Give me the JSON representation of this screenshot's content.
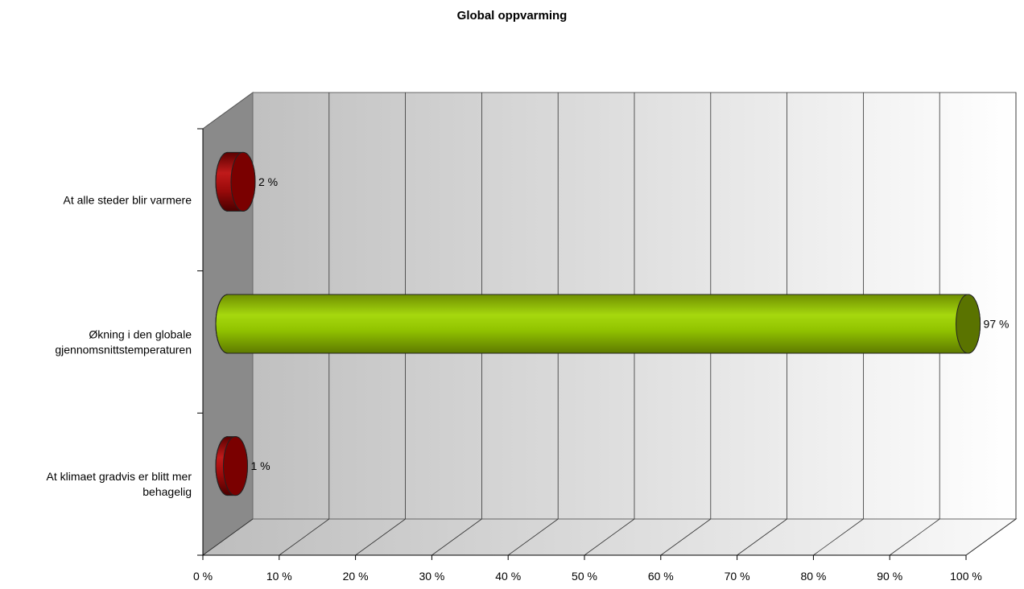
{
  "chart_data": {
    "type": "bar",
    "orientation": "horizontal",
    "style": "3d-cylinder",
    "title": "Global oppvarming",
    "categories": [
      "At alle steder blir varmere",
      "Økning i den globale gjennomsnittstemperaturen",
      "At klimaet gradvis er blitt mer behagelig"
    ],
    "category_lines": [
      [
        "At alle steder blir varmere"
      ],
      [
        "Økning i den globale",
        "gjennomsnittstemperaturen"
      ],
      [
        "At klimaet gradvis er blitt mer",
        "behagelig"
      ]
    ],
    "values": [
      2,
      97,
      1
    ],
    "value_labels": [
      "2 %",
      "97 %",
      "1 %"
    ],
    "bar_colors": [
      "#8b0000",
      "#99cc00",
      "#8b0000"
    ],
    "xlim": [
      0,
      100
    ],
    "xticks": [
      "0 %",
      "10 %",
      "20 %",
      "30 %",
      "40 %",
      "50 %",
      "60 %",
      "70 %",
      "80 %",
      "90 %",
      "100 %"
    ],
    "grid": true,
    "legend": "none"
  }
}
